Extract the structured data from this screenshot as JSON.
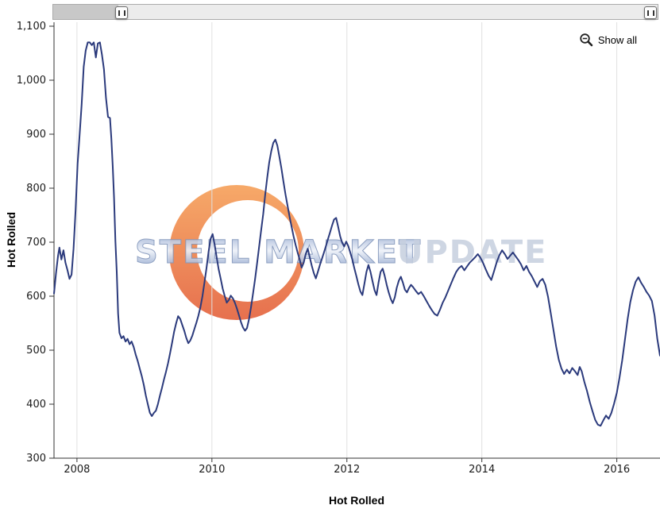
{
  "controls": {
    "show_all_label": "Show all"
  },
  "watermark": {
    "part1": "STEEL MARKET",
    "part2": "UPDATE"
  },
  "colors": {
    "line": "#2b3a7c",
    "grid": "#e0e0e0",
    "axis": "#333333",
    "watermark_orange_top": "#f59a4e",
    "watermark_orange_bottom": "#e2572f"
  },
  "chart_data": {
    "type": "line",
    "title": "",
    "xlabel": "Hot Rolled",
    "ylabel": "Hot Rolled",
    "xlim": [
      2007.66,
      2016.64
    ],
    "ylim": [
      300,
      1100
    ],
    "xticks": [
      2008,
      2010,
      2012,
      2014,
      2016
    ],
    "yticks": [
      300,
      400,
      500,
      600,
      700,
      800,
      900,
      1000,
      1100
    ],
    "grid": "vertical-only",
    "legend": "none",
    "series": [
      {
        "name": "Hot Rolled",
        "points": [
          [
            2007.66,
            605
          ],
          [
            2007.69,
            642
          ],
          [
            2007.72,
            675
          ],
          [
            2007.74,
            690
          ],
          [
            2007.77,
            668
          ],
          [
            2007.8,
            685
          ],
          [
            2007.83,
            662
          ],
          [
            2007.86,
            648
          ],
          [
            2007.89,
            632
          ],
          [
            2007.92,
            640
          ],
          [
            2007.95,
            688
          ],
          [
            2007.98,
            760
          ],
          [
            2008.01,
            845
          ],
          [
            2008.04,
            900
          ],
          [
            2008.07,
            955
          ],
          [
            2008.1,
            1025
          ],
          [
            2008.13,
            1055
          ],
          [
            2008.16,
            1070
          ],
          [
            2008.19,
            1070
          ],
          [
            2008.22,
            1065
          ],
          [
            2008.25,
            1070
          ],
          [
            2008.28,
            1042
          ],
          [
            2008.31,
            1068
          ],
          [
            2008.34,
            1070
          ],
          [
            2008.37,
            1048
          ],
          [
            2008.4,
            1020
          ],
          [
            2008.43,
            968
          ],
          [
            2008.46,
            932
          ],
          [
            2008.49,
            930
          ],
          [
            2008.51,
            892
          ],
          [
            2008.53,
            842
          ],
          [
            2008.55,
            782
          ],
          [
            2008.57,
            702
          ],
          [
            2008.59,
            645
          ],
          [
            2008.61,
            568
          ],
          [
            2008.63,
            532
          ],
          [
            2008.66,
            522
          ],
          [
            2008.69,
            526
          ],
          [
            2008.72,
            516
          ],
          [
            2008.75,
            521
          ],
          [
            2008.78,
            511
          ],
          [
            2008.81,
            516
          ],
          [
            2008.84,
            506
          ],
          [
            2008.87,
            492
          ],
          [
            2008.9,
            480
          ],
          [
            2008.93,
            466
          ],
          [
            2008.96,
            452
          ],
          [
            2008.99,
            436
          ],
          [
            2009.02,
            416
          ],
          [
            2009.05,
            400
          ],
          [
            2009.08,
            384
          ],
          [
            2009.11,
            378
          ],
          [
            2009.14,
            384
          ],
          [
            2009.17,
            388
          ],
          [
            2009.2,
            400
          ],
          [
            2009.23,
            416
          ],
          [
            2009.26,
            430
          ],
          [
            2009.29,
            446
          ],
          [
            2009.32,
            460
          ],
          [
            2009.35,
            476
          ],
          [
            2009.38,
            494
          ],
          [
            2009.41,
            514
          ],
          [
            2009.44,
            534
          ],
          [
            2009.47,
            550
          ],
          [
            2009.5,
            563
          ],
          [
            2009.53,
            558
          ],
          [
            2009.56,
            547
          ],
          [
            2009.59,
            536
          ],
          [
            2009.62,
            523
          ],
          [
            2009.65,
            513
          ],
          [
            2009.68,
            518
          ],
          [
            2009.71,
            527
          ],
          [
            2009.74,
            539
          ],
          [
            2009.77,
            551
          ],
          [
            2009.8,
            564
          ],
          [
            2009.83,
            580
          ],
          [
            2009.86,
            600
          ],
          [
            2009.89,
            626
          ],
          [
            2009.92,
            652
          ],
          [
            2009.95,
            682
          ],
          [
            2009.98,
            706
          ],
          [
            2010.01,
            715
          ],
          [
            2010.04,
            696
          ],
          [
            2010.07,
            672
          ],
          [
            2010.1,
            650
          ],
          [
            2010.13,
            632
          ],
          [
            2010.16,
            614
          ],
          [
            2010.19,
            600
          ],
          [
            2010.22,
            588
          ],
          [
            2010.25,
            593
          ],
          [
            2010.28,
            601
          ],
          [
            2010.31,
            596
          ],
          [
            2010.34,
            588
          ],
          [
            2010.37,
            577
          ],
          [
            2010.4,
            565
          ],
          [
            2010.43,
            552
          ],
          [
            2010.46,
            542
          ],
          [
            2010.49,
            536
          ],
          [
            2010.52,
            541
          ],
          [
            2010.55,
            558
          ],
          [
            2010.58,
            580
          ],
          [
            2010.61,
            606
          ],
          [
            2010.64,
            632
          ],
          [
            2010.67,
            661
          ],
          [
            2010.7,
            692
          ],
          [
            2010.73,
            722
          ],
          [
            2010.76,
            752
          ],
          [
            2010.79,
            788
          ],
          [
            2010.82,
            820
          ],
          [
            2010.85,
            848
          ],
          [
            2010.88,
            869
          ],
          [
            2010.91,
            884
          ],
          [
            2010.94,
            890
          ],
          [
            2010.97,
            879
          ],
          [
            2011.0,
            858
          ],
          [
            2011.03,
            837
          ],
          [
            2011.06,
            812
          ],
          [
            2011.09,
            789
          ],
          [
            2011.12,
            768
          ],
          [
            2011.15,
            748
          ],
          [
            2011.18,
            729
          ],
          [
            2011.21,
            711
          ],
          [
            2011.24,
            695
          ],
          [
            2011.27,
            681
          ],
          [
            2011.3,
            668
          ],
          [
            2011.33,
            653
          ],
          [
            2011.36,
            662
          ],
          [
            2011.39,
            678
          ],
          [
            2011.42,
            688
          ],
          [
            2011.45,
            672
          ],
          [
            2011.48,
            656
          ],
          [
            2011.51,
            643
          ],
          [
            2011.54,
            633
          ],
          [
            2011.57,
            645
          ],
          [
            2011.6,
            658
          ],
          [
            2011.63,
            669
          ],
          [
            2011.66,
            681
          ],
          [
            2011.69,
            693
          ],
          [
            2011.72,
            706
          ],
          [
            2011.75,
            718
          ],
          [
            2011.78,
            731
          ],
          [
            2011.81,
            742
          ],
          [
            2011.84,
            745
          ],
          [
            2011.87,
            729
          ],
          [
            2011.9,
            711
          ],
          [
            2011.93,
            699
          ],
          [
            2011.96,
            692
          ],
          [
            2011.99,
            701
          ],
          [
            2012.02,
            693
          ],
          [
            2012.05,
            681
          ],
          [
            2012.08,
            668
          ],
          [
            2012.11,
            652
          ],
          [
            2012.14,
            637
          ],
          [
            2012.17,
            622
          ],
          [
            2012.2,
            609
          ],
          [
            2012.23,
            602
          ],
          [
            2012.26,
            623
          ],
          [
            2012.29,
            645
          ],
          [
            2012.32,
            658
          ],
          [
            2012.35,
            645
          ],
          [
            2012.38,
            628
          ],
          [
            2012.41,
            611
          ],
          [
            2012.44,
            602
          ],
          [
            2012.47,
            626
          ],
          [
            2012.5,
            645
          ],
          [
            2012.53,
            651
          ],
          [
            2012.56,
            638
          ],
          [
            2012.59,
            621
          ],
          [
            2012.62,
            607
          ],
          [
            2012.65,
            595
          ],
          [
            2012.68,
            587
          ],
          [
            2012.71,
            598
          ],
          [
            2012.74,
            616
          ],
          [
            2012.77,
            629
          ],
          [
            2012.8,
            636
          ],
          [
            2012.83,
            625
          ],
          [
            2012.86,
            612
          ],
          [
            2012.89,
            607
          ],
          [
            2012.92,
            615
          ],
          [
            2012.95,
            621
          ],
          [
            2012.98,
            617
          ],
          [
            2013.02,
            610
          ],
          [
            2013.06,
            604
          ],
          [
            2013.1,
            608
          ],
          [
            2013.14,
            600
          ],
          [
            2013.18,
            591
          ],
          [
            2013.22,
            582
          ],
          [
            2013.26,
            574
          ],
          [
            2013.3,
            567
          ],
          [
            2013.34,
            564
          ],
          [
            2013.38,
            575
          ],
          [
            2013.42,
            588
          ],
          [
            2013.46,
            598
          ],
          [
            2013.5,
            610
          ],
          [
            2013.54,
            622
          ],
          [
            2013.58,
            634
          ],
          [
            2013.62,
            645
          ],
          [
            2013.66,
            652
          ],
          [
            2013.7,
            656
          ],
          [
            2013.74,
            648
          ],
          [
            2013.78,
            655
          ],
          [
            2013.82,
            662
          ],
          [
            2013.86,
            667
          ],
          [
            2013.9,
            672
          ],
          [
            2013.94,
            678
          ],
          [
            2013.98,
            671
          ],
          [
            2014.02,
            661
          ],
          [
            2014.06,
            649
          ],
          [
            2014.1,
            638
          ],
          [
            2014.14,
            630
          ],
          [
            2014.18,
            646
          ],
          [
            2014.22,
            663
          ],
          [
            2014.26,
            676
          ],
          [
            2014.3,
            685
          ],
          [
            2014.34,
            678
          ],
          [
            2014.38,
            669
          ],
          [
            2014.42,
            675
          ],
          [
            2014.46,
            681
          ],
          [
            2014.5,
            674
          ],
          [
            2014.54,
            667
          ],
          [
            2014.58,
            659
          ],
          [
            2014.62,
            648
          ],
          [
            2014.66,
            656
          ],
          [
            2014.7,
            645
          ],
          [
            2014.74,
            637
          ],
          [
            2014.78,
            627
          ],
          [
            2014.82,
            617
          ],
          [
            2014.86,
            628
          ],
          [
            2014.9,
            632
          ],
          [
            2014.94,
            621
          ],
          [
            2014.98,
            599
          ],
          [
            2015.02,
            569
          ],
          [
            2015.06,
            538
          ],
          [
            2015.1,
            507
          ],
          [
            2015.14,
            482
          ],
          [
            2015.18,
            466
          ],
          [
            2015.22,
            456
          ],
          [
            2015.26,
            464
          ],
          [
            2015.3,
            457
          ],
          [
            2015.34,
            467
          ],
          [
            2015.38,
            461
          ],
          [
            2015.42,
            454
          ],
          [
            2015.45,
            469
          ],
          [
            2015.48,
            461
          ],
          [
            2015.52,
            441
          ],
          [
            2015.56,
            424
          ],
          [
            2015.6,
            404
          ],
          [
            2015.64,
            387
          ],
          [
            2015.68,
            371
          ],
          [
            2015.72,
            362
          ],
          [
            2015.76,
            360
          ],
          [
            2015.8,
            370
          ],
          [
            2015.84,
            379
          ],
          [
            2015.88,
            373
          ],
          [
            2015.92,
            384
          ],
          [
            2015.96,
            401
          ],
          [
            2016.0,
            421
          ],
          [
            2016.04,
            449
          ],
          [
            2016.08,
            481
          ],
          [
            2016.12,
            519
          ],
          [
            2016.16,
            557
          ],
          [
            2016.2,
            589
          ],
          [
            2016.24,
            611
          ],
          [
            2016.28,
            627
          ],
          [
            2016.32,
            635
          ],
          [
            2016.36,
            625
          ],
          [
            2016.4,
            617
          ],
          [
            2016.44,
            608
          ],
          [
            2016.48,
            601
          ],
          [
            2016.52,
            591
          ],
          [
            2016.56,
            564
          ],
          [
            2016.6,
            521
          ],
          [
            2016.64,
            490
          ]
        ]
      }
    ]
  }
}
